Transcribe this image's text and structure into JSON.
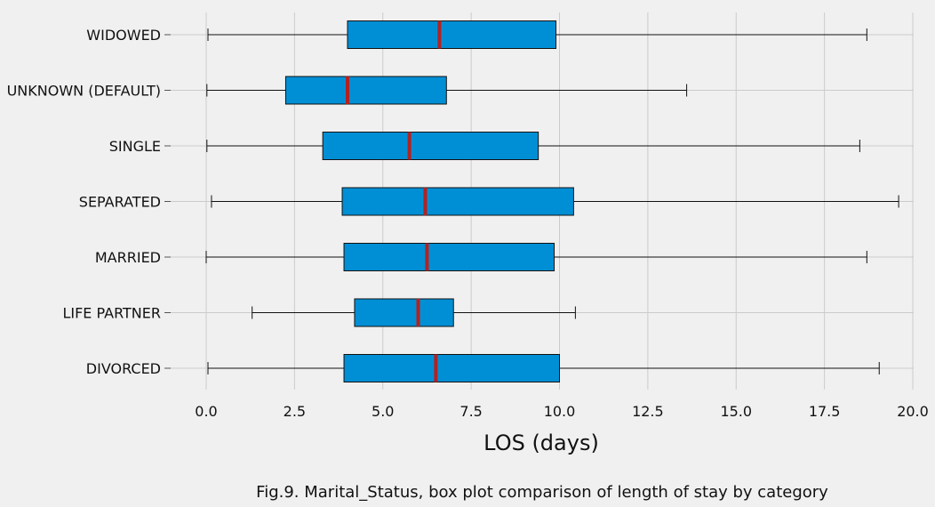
{
  "chart_data": {
    "type": "boxplot",
    "orientation": "horizontal",
    "title": "",
    "xlabel": "LOS (days)",
    "ylabel": "",
    "caption": "Fig.9. Marital_Status, box plot comparison of length of stay by category",
    "xlim": [
      -1.0,
      20.0
    ],
    "x_ticks": [
      0.0,
      2.5,
      5.0,
      7.5,
      10.0,
      12.5,
      15.0,
      17.5,
      20.0
    ],
    "x_tick_labels": [
      "0.0",
      "2.5",
      "5.0",
      "7.5",
      "10.0",
      "12.5",
      "15.0",
      "17.5",
      "20.0"
    ],
    "grid": true,
    "colors": {
      "background": "#f0f0f0",
      "grid": "#cbcbcb",
      "box_fill": "#008fd5",
      "box_edge": "#111111",
      "median": "#b22222",
      "whisker": "#111111"
    },
    "categories": [
      "WIDOWED",
      "UNKNOWN (DEFAULT)",
      "SINGLE",
      "SEPARATED",
      "MARRIED",
      "LIFE PARTNER",
      "DIVORCED"
    ],
    "boxes": [
      {
        "category": "WIDOWED",
        "whisker_low": 0.05,
        "q1": 4.0,
        "median": 6.6,
        "q3": 9.9,
        "whisker_high": 18.7
      },
      {
        "category": "UNKNOWN (DEFAULT)",
        "whisker_low": 0.02,
        "q1": 2.25,
        "median": 4.0,
        "q3": 6.8,
        "whisker_high": 13.6
      },
      {
        "category": "SINGLE",
        "whisker_low": 0.02,
        "q1": 3.3,
        "median": 5.75,
        "q3": 9.4,
        "whisker_high": 18.5
      },
      {
        "category": "SEPARATED",
        "whisker_low": 0.15,
        "q1": 3.85,
        "median": 6.2,
        "q3": 10.4,
        "whisker_high": 19.6
      },
      {
        "category": "MARRIED",
        "whisker_low": 0.0,
        "q1": 3.9,
        "median": 6.25,
        "q3": 9.85,
        "whisker_high": 18.7
      },
      {
        "category": "LIFE PARTNER",
        "whisker_low": 1.3,
        "q1": 4.2,
        "median": 6.0,
        "q3": 7.0,
        "whisker_high": 10.45
      },
      {
        "category": "DIVORCED",
        "whisker_low": 0.05,
        "q1": 3.9,
        "median": 6.5,
        "q3": 10.0,
        "whisker_high": 19.05
      }
    ]
  }
}
